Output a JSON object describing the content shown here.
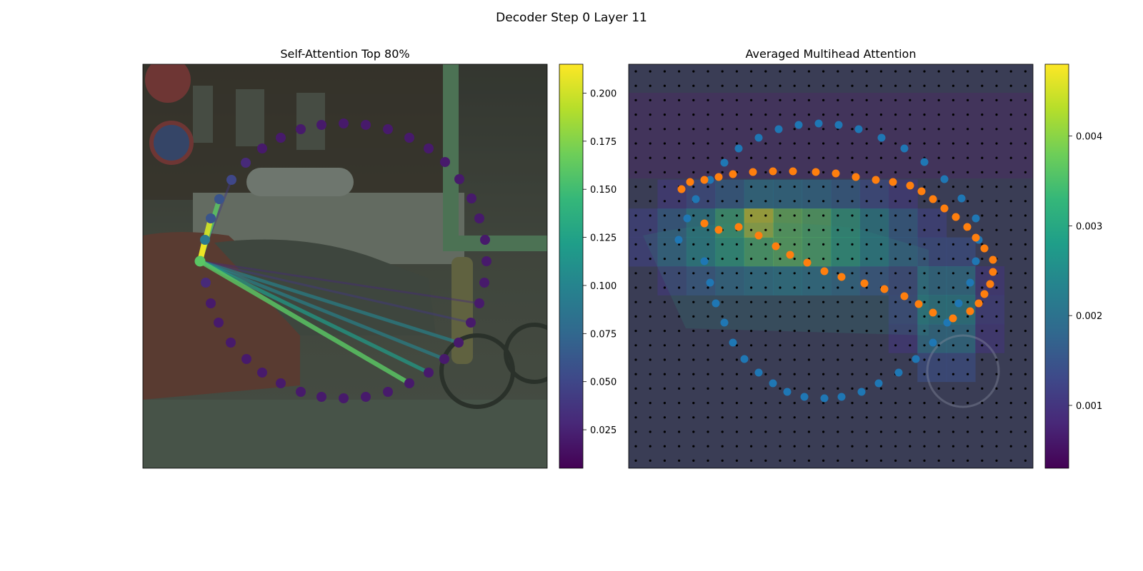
{
  "suptitle": "Decoder Step 0 Layer 11",
  "colormap": [
    "#440154",
    "#482878",
    "#3e4989",
    "#31688e",
    "#26828e",
    "#1f9e89",
    "#35b779",
    "#6ece58",
    "#b5de2b",
    "#fde725"
  ],
  "chart_data": [
    {
      "type": "scatter",
      "title": "Self-Attention Top 80%",
      "grid": false,
      "background": "street scene photograph (car, building, bicycle)",
      "attention_points": [
        {
          "x": 280,
          "y": 366,
          "v": 0.16
        },
        {
          "x": 288,
          "y": 396,
          "v": 0.03
        },
        {
          "x": 295,
          "y": 425,
          "v": 0.02
        },
        {
          "x": 306,
          "y": 452,
          "v": 0.02
        },
        {
          "x": 323,
          "y": 480,
          "v": 0.02
        },
        {
          "x": 345,
          "y": 503,
          "v": 0.02
        },
        {
          "x": 367,
          "y": 522,
          "v": 0.02
        },
        {
          "x": 393,
          "y": 537,
          "v": 0.02
        },
        {
          "x": 421,
          "y": 549,
          "v": 0.02
        },
        {
          "x": 450,
          "y": 556,
          "v": 0.02
        },
        {
          "x": 481,
          "y": 558,
          "v": 0.02
        },
        {
          "x": 512,
          "y": 556,
          "v": 0.02
        },
        {
          "x": 543,
          "y": 549,
          "v": 0.02
        },
        {
          "x": 573,
          "y": 537,
          "v": 0.02
        },
        {
          "x": 600,
          "y": 522,
          "v": 0.02
        },
        {
          "x": 622,
          "y": 503,
          "v": 0.02
        },
        {
          "x": 642,
          "y": 480,
          "v": 0.02
        },
        {
          "x": 659,
          "y": 452,
          "v": 0.02
        },
        {
          "x": 671,
          "y": 425,
          "v": 0.02
        },
        {
          "x": 678,
          "y": 396,
          "v": 0.02
        },
        {
          "x": 681,
          "y": 366,
          "v": 0.02
        },
        {
          "x": 679,
          "y": 336,
          "v": 0.02
        },
        {
          "x": 671,
          "y": 306,
          "v": 0.02
        },
        {
          "x": 660,
          "y": 278,
          "v": 0.02
        },
        {
          "x": 643,
          "y": 251,
          "v": 0.02
        },
        {
          "x": 623,
          "y": 227,
          "v": 0.02
        },
        {
          "x": 600,
          "y": 208,
          "v": 0.02
        },
        {
          "x": 573,
          "y": 193,
          "v": 0.02
        },
        {
          "x": 543,
          "y": 181,
          "v": 0.02
        },
        {
          "x": 512,
          "y": 175,
          "v": 0.02
        },
        {
          "x": 481,
          "y": 173,
          "v": 0.02
        },
        {
          "x": 450,
          "y": 175,
          "v": 0.02
        },
        {
          "x": 421,
          "y": 181,
          "v": 0.02
        },
        {
          "x": 393,
          "y": 193,
          "v": 0.02
        },
        {
          "x": 367,
          "y": 208,
          "v": 0.02
        },
        {
          "x": 344,
          "y": 228,
          "v": 0.03
        },
        {
          "x": 324,
          "y": 252,
          "v": 0.05
        },
        {
          "x": 307,
          "y": 279,
          "v": 0.06
        },
        {
          "x": 295,
          "y": 306,
          "v": 0.06
        },
        {
          "x": 287,
          "y": 336,
          "v": 0.09
        }
      ],
      "attention_links": [
        {
          "to": 39,
          "v": 0.21
        },
        {
          "to": 38,
          "v": 0.2
        },
        {
          "to": 37,
          "v": 0.16
        },
        {
          "to": 13,
          "v": 0.16
        },
        {
          "to": 14,
          "v": 0.12
        },
        {
          "to": 15,
          "v": 0.1
        },
        {
          "to": 16,
          "v": 0.1
        },
        {
          "to": 17,
          "v": 0.04
        },
        {
          "to": 18,
          "v": 0.03
        },
        {
          "to": 36,
          "v": 0.04
        }
      ],
      "colorbar": {
        "min": 0.005,
        "max": 0.215,
        "ticks": [
          0.025,
          0.05,
          0.075,
          0.1,
          0.125,
          0.15,
          0.175,
          0.2
        ],
        "tick_labels": [
          "0.025",
          "0.050",
          "0.075",
          "0.100",
          "0.125",
          "0.150",
          "0.175",
          "0.200"
        ]
      }
    },
    {
      "type": "heatmap",
      "title": "Averaged Multihead Attention",
      "grid": true,
      "background": "same street scene photograph under a viridis attention heatmap",
      "series": [
        {
          "color": "#1f77b4",
          "points": [
            [
              8,
              366
            ],
            [
              10,
              396
            ],
            [
              12,
              425
            ],
            [
              15,
              452
            ],
            [
              18,
              480
            ],
            [
              22,
              503
            ],
            [
              27,
              522
            ],
            [
              32,
              537
            ],
            [
              37,
              549
            ],
            [
              43,
              556
            ],
            [
              50,
              558
            ],
            [
              56,
              556
            ],
            [
              63,
              549
            ],
            [
              69,
              537
            ],
            [
              76,
              522
            ],
            [
              82,
              503
            ],
            [
              88,
              480
            ],
            [
              93,
              452
            ],
            [
              97,
              425
            ],
            [
              101,
              396
            ],
            [
              103,
              366
            ],
            [
              104,
              336
            ],
            [
              103,
              306
            ],
            [
              98,
              278
            ],
            [
              92,
              251
            ],
            [
              85,
              227
            ],
            [
              78,
              208
            ],
            [
              70,
              193
            ],
            [
              62,
              181
            ],
            [
              55,
              175
            ],
            [
              48,
              173
            ],
            [
              41,
              175
            ],
            [
              34,
              181
            ],
            [
              27,
              193
            ],
            [
              20,
              208
            ],
            [
              15,
              228
            ],
            [
              10,
              252
            ],
            [
              5,
              279
            ],
            [
              2,
              306
            ],
            [
              -1,
              336
            ]
          ]
        },
        {
          "color": "#ff7f0e",
          "points": [
            [
              0,
              265
            ],
            [
              3,
              255
            ],
            [
              8,
              252
            ],
            [
              13,
              248
            ],
            [
              18,
              244
            ],
            [
              25,
              241
            ],
            [
              32,
              240
            ],
            [
              39,
              240
            ],
            [
              47,
              241
            ],
            [
              54,
              243
            ],
            [
              61,
              248
            ],
            [
              68,
              252
            ],
            [
              74,
              255
            ],
            [
              80,
              260
            ],
            [
              84,
              268
            ],
            [
              88,
              279
            ],
            [
              92,
              292
            ],
            [
              96,
              304
            ],
            [
              100,
              318
            ],
            [
              103,
              333
            ],
            [
              106,
              348
            ],
            [
              109,
              364
            ],
            [
              109,
              381
            ],
            [
              108,
              398
            ],
            [
              106,
              412
            ],
            [
              104,
              425
            ],
            [
              101,
              436
            ],
            [
              95,
              446
            ],
            [
              88,
              438
            ],
            [
              83,
              426
            ],
            [
              78,
              415
            ],
            [
              71,
              405
            ],
            [
              64,
              397
            ],
            [
              56,
              388
            ],
            [
              50,
              380
            ],
            [
              44,
              368
            ],
            [
              38,
              357
            ],
            [
              33,
              345
            ],
            [
              27,
              330
            ],
            [
              20,
              318
            ],
            [
              13,
              322
            ],
            [
              8,
              313
            ]
          ]
        }
      ],
      "colorbar": {
        "min": 0.0003,
        "max": 0.0048,
        "ticks": [
          0.001,
          0.002,
          0.003,
          0.004
        ],
        "tick_labels": [
          "0.001",
          "0.002",
          "0.003",
          "0.004"
        ]
      }
    }
  ]
}
